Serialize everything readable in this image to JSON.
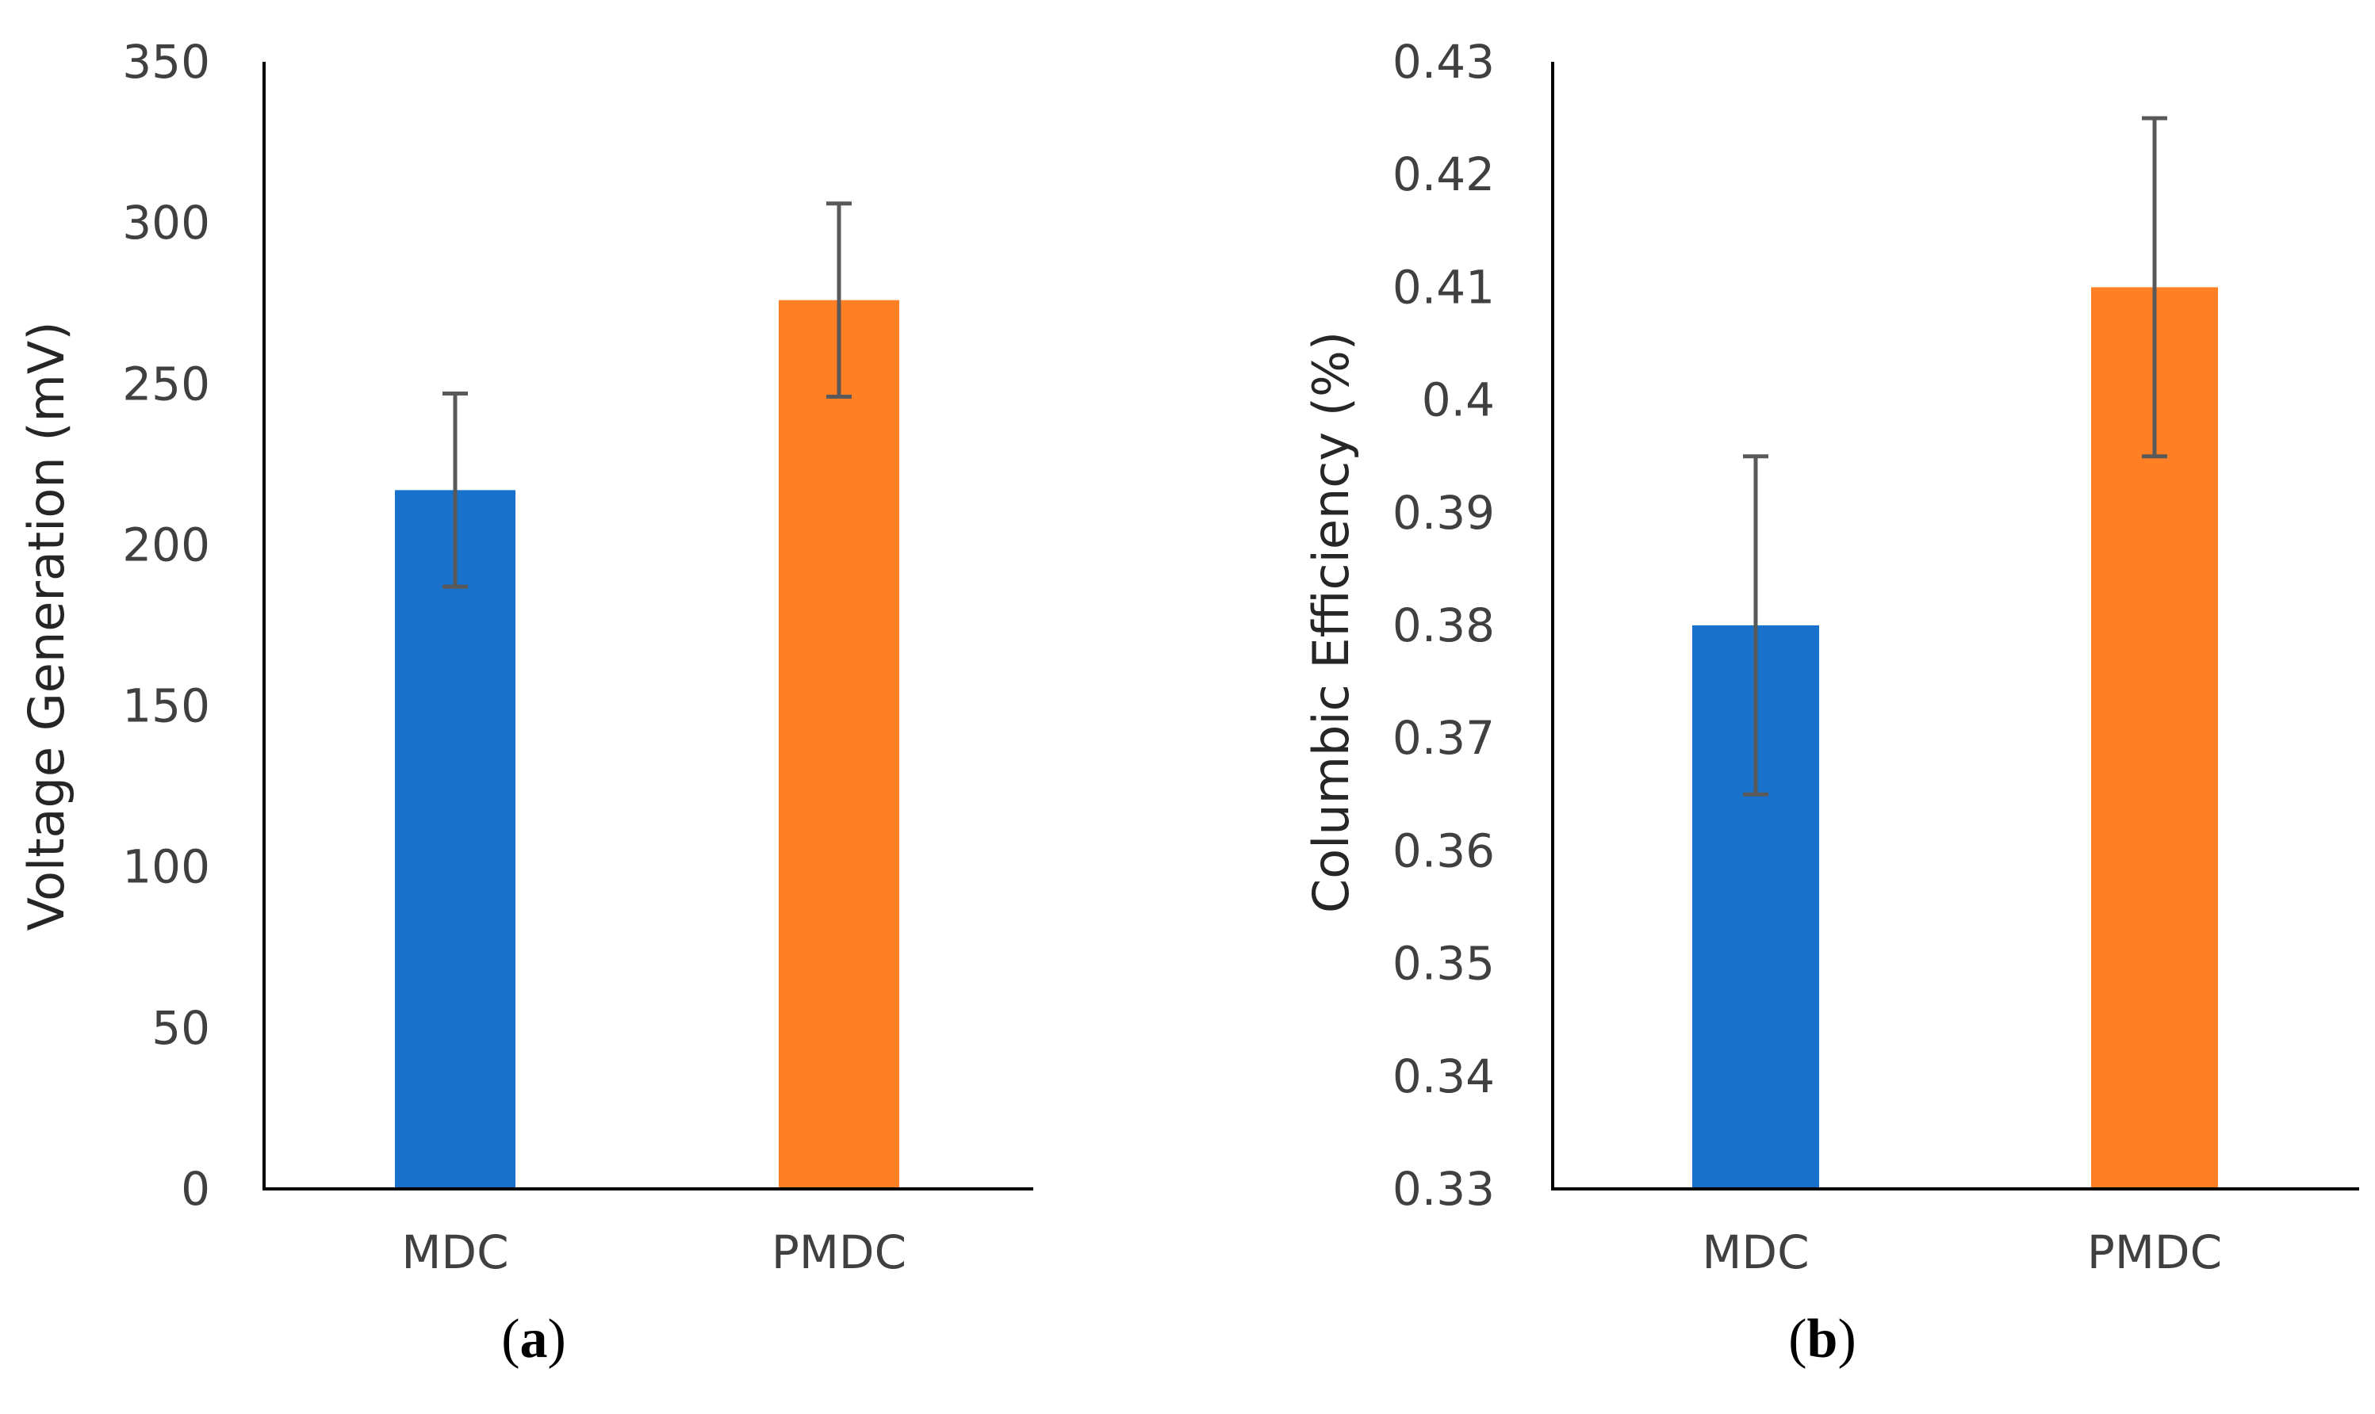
{
  "chart_data": [
    {
      "type": "bar",
      "panel": "a",
      "panel_label": "a",
      "categories": [
        "MDC",
        "PMDC"
      ],
      "values": [
        217,
        276
      ],
      "errors": [
        30,
        30
      ],
      "colors": [
        "#1872CC",
        "#FF8024"
      ],
      "ylabel": "Voltage Generation (mV)",
      "xlabel": "",
      "ylim": [
        0,
        350
      ],
      "ytick_step": 50,
      "yticks": [
        "0",
        "50",
        "100",
        "150",
        "200",
        "250",
        "300",
        "350"
      ],
      "grid": false,
      "legend": "none"
    },
    {
      "type": "bar",
      "panel": "b",
      "panel_label": "b",
      "categories": [
        "MDC",
        "PMDC"
      ],
      "values": [
        0.38,
        0.41
      ],
      "errors": [
        0.015,
        0.015
      ],
      "colors": [
        "#1872CC",
        "#FF8024"
      ],
      "ylabel": "Columbic Efficiency (%)",
      "xlabel": "",
      "ylim": [
        0.33,
        0.43
      ],
      "ytick_step": 0.01,
      "yticks": [
        "0.33",
        "0.34",
        "0.35",
        "0.36",
        "0.37",
        "0.38",
        "0.39",
        "0.4",
        "0.41",
        "0.42",
        "0.43"
      ],
      "grid": false,
      "legend": "none"
    }
  ]
}
